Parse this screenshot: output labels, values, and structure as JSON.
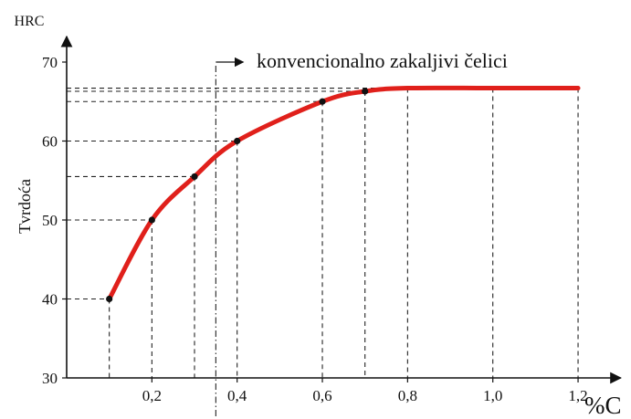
{
  "chart_data": {
    "type": "line",
    "xlabel": "%C",
    "ylabel": "Tvrdoća",
    "y_unit_label": "HRC",
    "xlim": [
      0,
      1.3
    ],
    "ylim": [
      30,
      73
    ],
    "x_ticks": [
      {
        "value": 0.2,
        "label": "0,2"
      },
      {
        "value": 0.4,
        "label": "0,4"
      },
      {
        "value": 0.6,
        "label": "0,6"
      },
      {
        "value": 0.8,
        "label": "0,8"
      },
      {
        "value": 1.0,
        "label": "1,0"
      },
      {
        "value": 1.2,
        "label": "1,2"
      }
    ],
    "y_ticks": [
      {
        "value": 30,
        "label": "30"
      },
      {
        "value": 40,
        "label": "40"
      },
      {
        "value": 50,
        "label": "50"
      },
      {
        "value": 60,
        "label": "60"
      },
      {
        "value": 70,
        "label": "70"
      }
    ],
    "series": [
      {
        "color": "#e0201b",
        "x": [
          0.1,
          0.2,
          0.3,
          0.4,
          0.6,
          0.7,
          0.8,
          1.0,
          1.2
        ],
        "y": [
          40,
          50,
          55.5,
          60,
          65,
          66.3,
          66.7,
          66.7,
          66.7
        ],
        "markers_at": [
          0,
          1,
          2,
          3,
          4,
          5
        ]
      }
    ],
    "annotation": {
      "text": "konvencionalno zakaljivi čelici",
      "x": 0.35
    },
    "grid": false,
    "legend": "none"
  }
}
